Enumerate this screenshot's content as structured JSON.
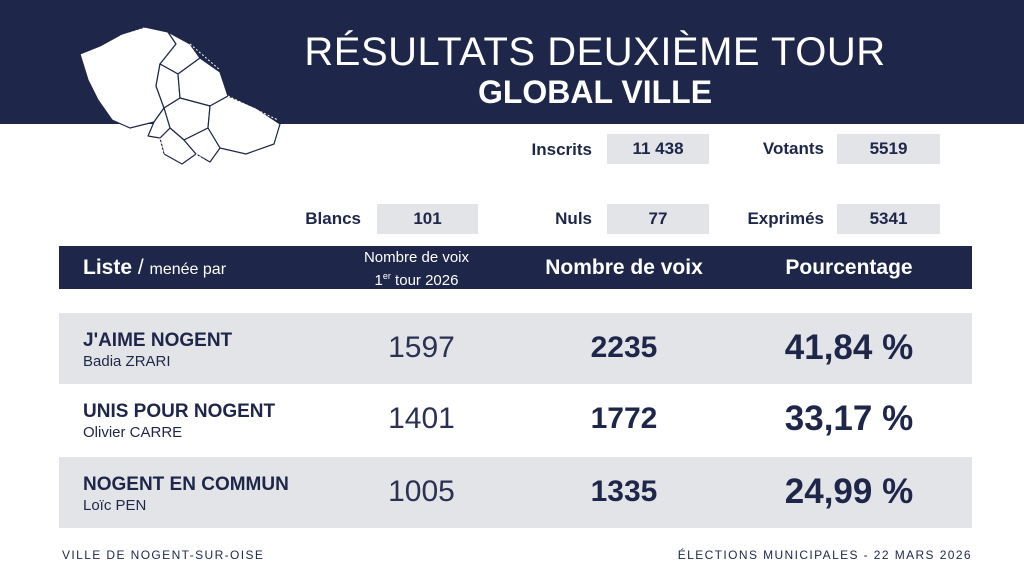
{
  "header": {
    "title": "RÉSULTATS DEUXIÈME TOUR",
    "subtitle": "GLOBAL VILLE"
  },
  "map_icon": "city-district-map-icon",
  "stats": {
    "inscrits": {
      "label": "Inscrits",
      "value": "11 438"
    },
    "votants": {
      "label": "Votants",
      "value": "5519"
    },
    "blancs": {
      "label": "Blancs",
      "value": "101"
    },
    "nuls": {
      "label": "Nuls",
      "value": "77"
    },
    "exprimes": {
      "label": "Exprimés",
      "value": "5341"
    }
  },
  "table": {
    "head": {
      "liste": "Liste",
      "slash": " / ",
      "menee": "menée par",
      "prev_line1": "Nombre de voix",
      "prev_line2_num": "1",
      "prev_line2_sup": "er",
      "prev_line2_rest": " tour 2026",
      "voix": "Nombre de voix",
      "pct": "Pourcentage"
    },
    "rows": [
      {
        "name": "J'AIME NOGENT",
        "leader": "Badia ZRARI",
        "prev": "1597",
        "voix": "2235",
        "pct": "41,84 %"
      },
      {
        "name": "UNIS POUR NOGENT",
        "leader": "Olivier CARRE",
        "prev": "1401",
        "voix": "1772",
        "pct": "33,17 %"
      },
      {
        "name": "NOGENT EN COMMUN",
        "leader": "Loïc PEN",
        "prev": "1005",
        "voix": "1335",
        "pct": "24,99 %"
      }
    ]
  },
  "footer": {
    "left": "VILLE DE NOGENT-SUR-OISE",
    "right": "ÉLECTIONS MUNICIPALES - 22 MARS 2026"
  },
  "colors": {
    "navy": "#1e2749",
    "grey_band": "#e3e4e8"
  }
}
